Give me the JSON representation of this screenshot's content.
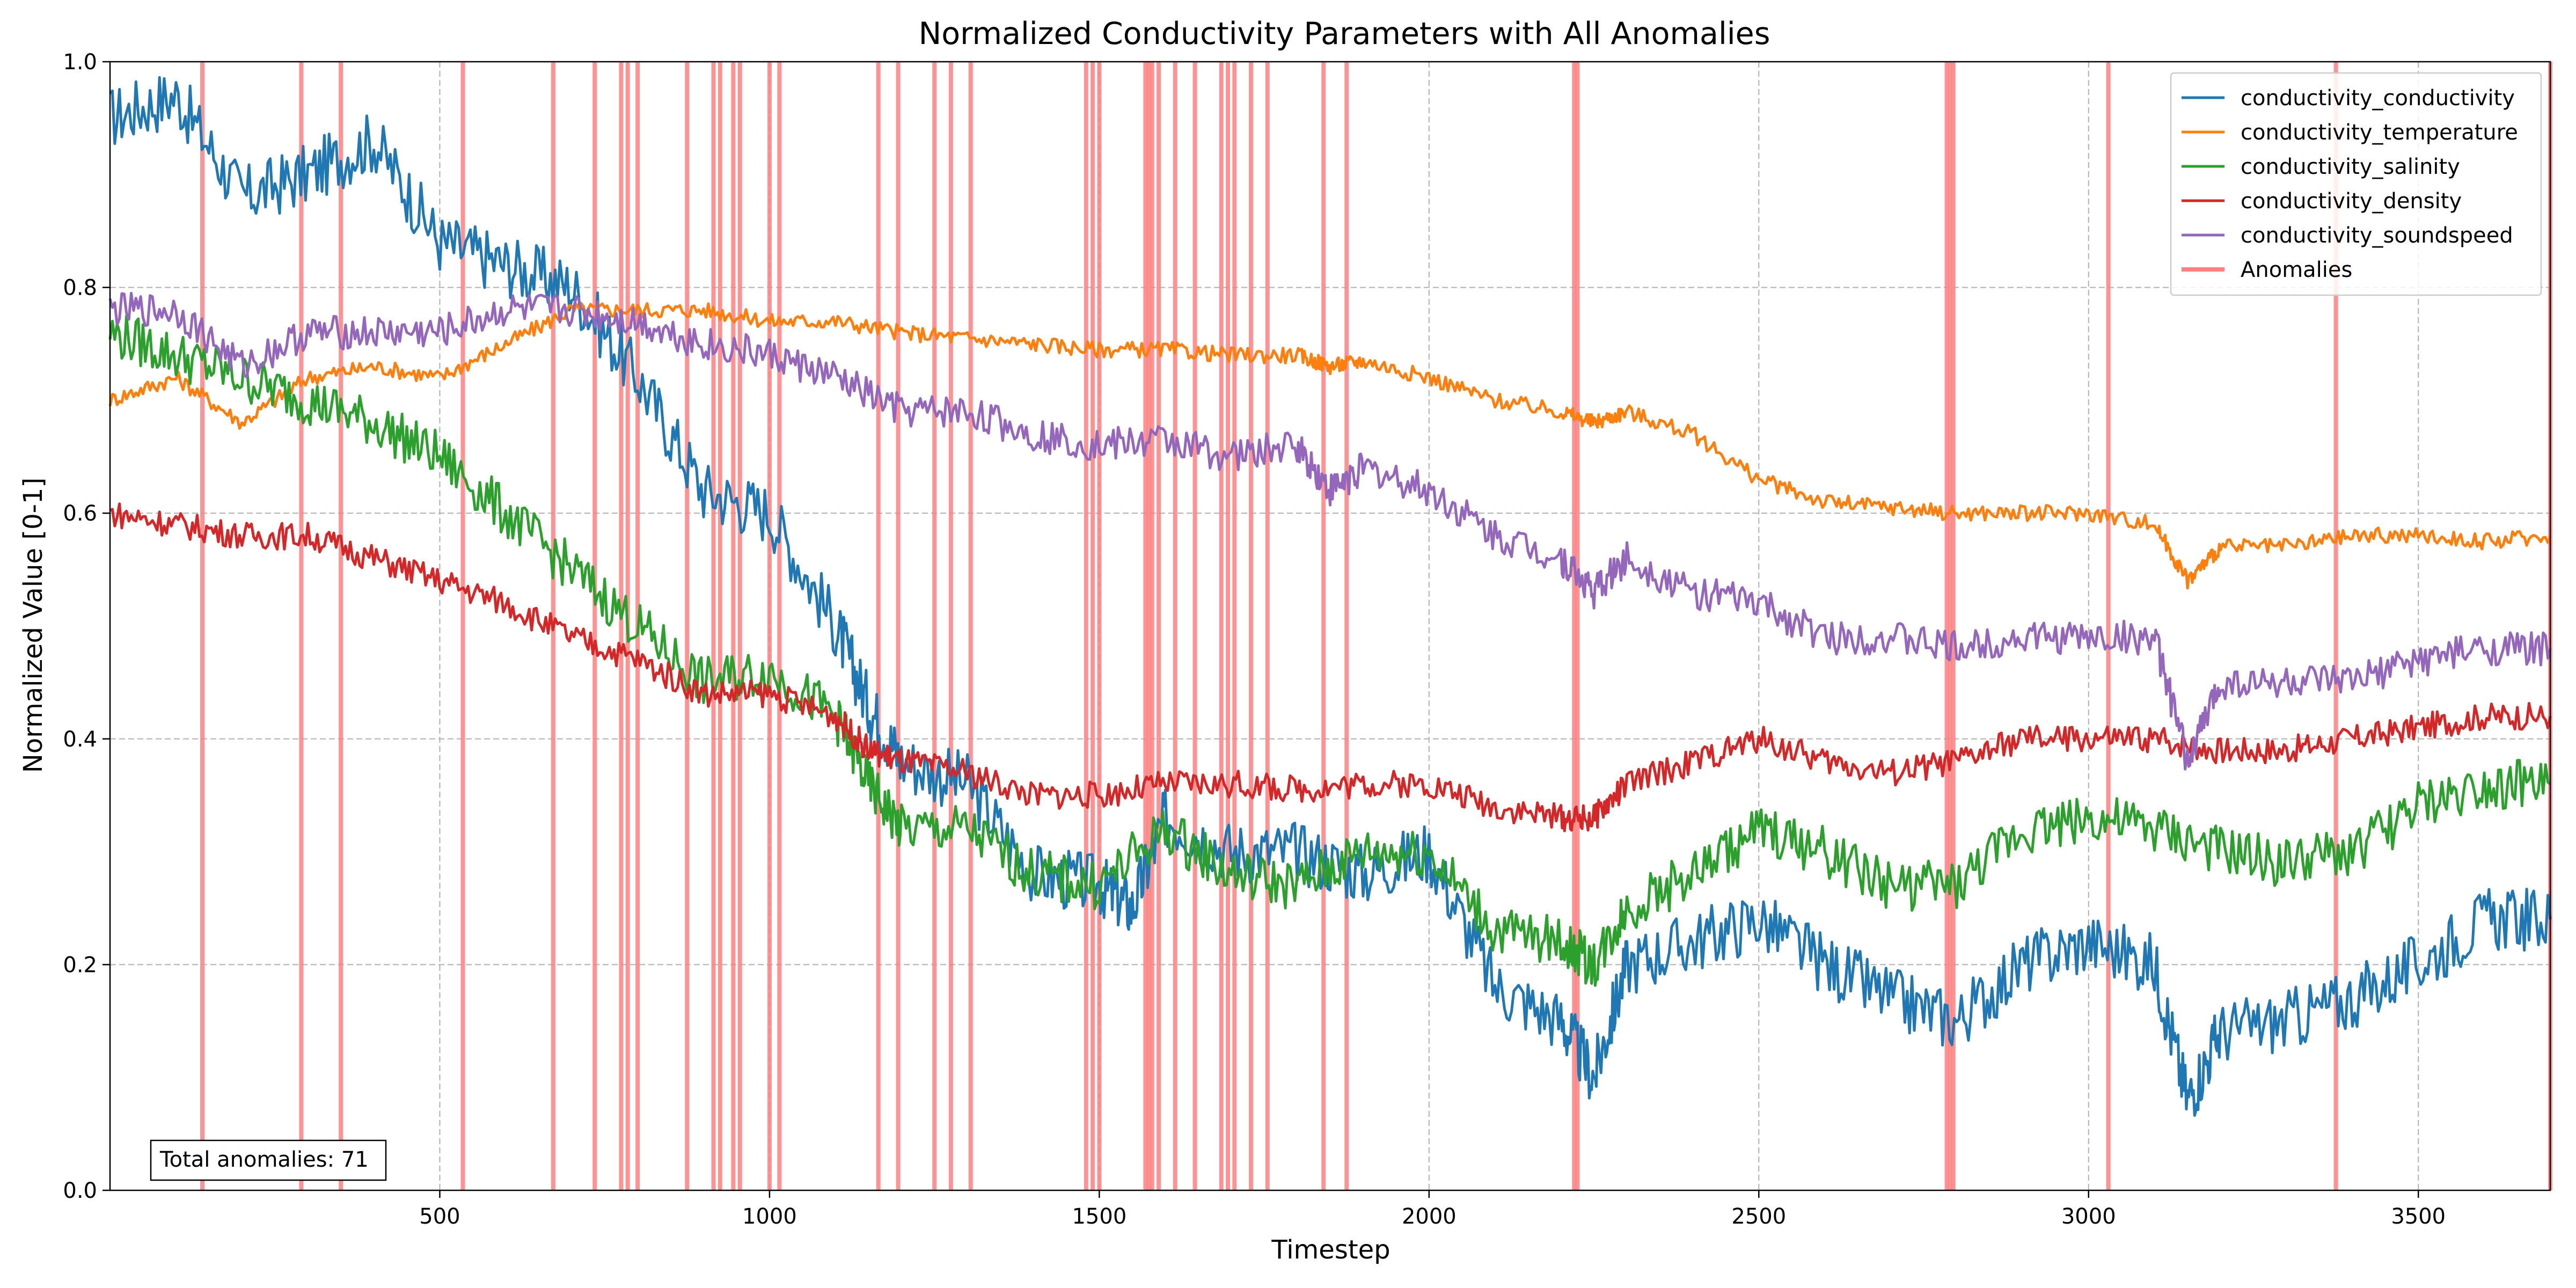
{
  "chart_data": {
    "type": "line",
    "title": "Normalized Conductivity Parameters with All Anomalies",
    "xlabel": "Timestep",
    "ylabel": "Normalized Value [0-1]",
    "xlim": [
      0,
      3700
    ],
    "ylim": [
      0,
      1
    ],
    "x_ticks": [
      500,
      1000,
      1500,
      2000,
      2500,
      3000,
      3500
    ],
    "y_ticks": [
      0.0,
      0.2,
      0.4,
      0.6,
      0.8,
      1.0
    ],
    "x_tick_labels": [
      "500",
      "1000",
      "1500",
      "2000",
      "2500",
      "3000",
      "3500"
    ],
    "y_tick_labels": [
      "0.0",
      "0.2",
      "0.4",
      "0.6",
      "0.8",
      "1.0"
    ],
    "grid": true,
    "legend_position": "top-right",
    "series": [
      {
        "name": "conductivity_conductivity",
        "color": "#1f77b4",
        "x": [
          0,
          100,
          200,
          300,
          400,
          500,
          600,
          700,
          800,
          900,
          1000,
          1100,
          1150,
          1200,
          1300,
          1400,
          1500,
          1550,
          1600,
          1700,
          1800,
          1900,
          2000,
          2100,
          2200,
          2250,
          2300,
          2400,
          2500,
          2600,
          2700,
          2800,
          2900,
          3000,
          3100,
          3150,
          3200,
          3300,
          3400,
          3500,
          3600,
          3700
        ],
        "y": [
          0.95,
          0.97,
          0.88,
          0.9,
          0.93,
          0.84,
          0.82,
          0.8,
          0.72,
          0.62,
          0.6,
          0.5,
          0.43,
          0.38,
          0.36,
          0.28,
          0.27,
          0.25,
          0.33,
          0.3,
          0.3,
          0.28,
          0.3,
          0.18,
          0.15,
          0.1,
          0.2,
          0.22,
          0.24,
          0.2,
          0.17,
          0.15,
          0.2,
          0.22,
          0.2,
          0.08,
          0.14,
          0.15,
          0.17,
          0.2,
          0.24,
          0.24
        ]
      },
      {
        "name": "conductivity_temperature",
        "color": "#ff7f0e",
        "x": [
          0,
          100,
          200,
          300,
          400,
          500,
          600,
          700,
          800,
          900,
          1000,
          1100,
          1200,
          1300,
          1400,
          1500,
          1600,
          1700,
          1800,
          1850,
          1900,
          2000,
          2100,
          2200,
          2250,
          2300,
          2400,
          2500,
          2600,
          2700,
          2800,
          2900,
          3000,
          3100,
          3150,
          3200,
          3300,
          3400,
          3500,
          3600,
          3700
        ],
        "y": [
          0.7,
          0.72,
          0.68,
          0.72,
          0.73,
          0.72,
          0.75,
          0.78,
          0.78,
          0.78,
          0.77,
          0.77,
          0.76,
          0.755,
          0.75,
          0.745,
          0.745,
          0.74,
          0.74,
          0.73,
          0.735,
          0.72,
          0.7,
          0.69,
          0.68,
          0.69,
          0.67,
          0.63,
          0.61,
          0.605,
          0.6,
          0.6,
          0.6,
          0.59,
          0.54,
          0.57,
          0.57,
          0.58,
          0.58,
          0.575,
          0.58
        ]
      },
      {
        "name": "conductivity_salinity",
        "color": "#2ca02c",
        "x": [
          0,
          100,
          200,
          300,
          400,
          500,
          600,
          700,
          800,
          900,
          1000,
          1100,
          1150,
          1200,
          1300,
          1400,
          1500,
          1600,
          1700,
          1800,
          1900,
          2000,
          2100,
          2200,
          2250,
          2300,
          2400,
          2500,
          2600,
          2700,
          2800,
          2900,
          3000,
          3100,
          3200,
          3300,
          3400,
          3500,
          3600,
          3700
        ],
        "y": [
          0.76,
          0.74,
          0.72,
          0.7,
          0.68,
          0.65,
          0.6,
          0.55,
          0.5,
          0.45,
          0.46,
          0.42,
          0.36,
          0.32,
          0.32,
          0.28,
          0.27,
          0.32,
          0.28,
          0.27,
          0.3,
          0.3,
          0.23,
          0.22,
          0.2,
          0.25,
          0.28,
          0.32,
          0.3,
          0.27,
          0.27,
          0.32,
          0.33,
          0.32,
          0.3,
          0.29,
          0.3,
          0.34,
          0.36,
          0.36
        ]
      },
      {
        "name": "conductivity_density",
        "color": "#d62728",
        "x": [
          0,
          100,
          200,
          300,
          400,
          500,
          600,
          700,
          800,
          900,
          1000,
          1100,
          1150,
          1200,
          1300,
          1400,
          1500,
          1600,
          1700,
          1800,
          1900,
          2000,
          2100,
          2200,
          2250,
          2300,
          2400,
          2500,
          2600,
          2700,
          2800,
          2900,
          3000,
          3100,
          3200,
          3300,
          3400,
          3500,
          3600,
          3700
        ],
        "y": [
          0.6,
          0.59,
          0.58,
          0.58,
          0.56,
          0.54,
          0.52,
          0.49,
          0.47,
          0.44,
          0.44,
          0.42,
          0.39,
          0.38,
          0.37,
          0.35,
          0.35,
          0.36,
          0.36,
          0.355,
          0.36,
          0.36,
          0.34,
          0.33,
          0.33,
          0.36,
          0.38,
          0.4,
          0.38,
          0.37,
          0.38,
          0.4,
          0.4,
          0.4,
          0.39,
          0.39,
          0.4,
          0.41,
          0.42,
          0.42
        ]
      },
      {
        "name": "conductivity_soundspeed",
        "color": "#9467bd",
        "x": [
          0,
          100,
          200,
          300,
          400,
          500,
          600,
          700,
          800,
          900,
          1000,
          1100,
          1200,
          1300,
          1400,
          1500,
          1600,
          1700,
          1800,
          1850,
          1900,
          2000,
          2100,
          2200,
          2250,
          2300,
          2400,
          2500,
          2600,
          2700,
          2800,
          2900,
          3000,
          3100,
          3150,
          3200,
          3300,
          3400,
          3500,
          3600,
          3700
        ],
        "y": [
          0.78,
          0.78,
          0.73,
          0.76,
          0.76,
          0.76,
          0.78,
          0.78,
          0.77,
          0.75,
          0.74,
          0.72,
          0.69,
          0.69,
          0.67,
          0.66,
          0.665,
          0.65,
          0.66,
          0.62,
          0.64,
          0.62,
          0.58,
          0.56,
          0.53,
          0.56,
          0.53,
          0.52,
          0.49,
          0.49,
          0.48,
          0.49,
          0.49,
          0.49,
          0.38,
          0.45,
          0.45,
          0.45,
          0.47,
          0.48,
          0.48
        ]
      }
    ],
    "anomalies": {
      "name": "Anomalies",
      "color": "#ff8080",
      "total_text": "Total anomalies: 71",
      "x": [
        140,
        290,
        350,
        535,
        672,
        735,
        775,
        785,
        800,
        875,
        915,
        925,
        945,
        955,
        1000,
        1015,
        1165,
        1195,
        1250,
        1275,
        1305,
        1480,
        1490,
        1500,
        1570,
        1575,
        1580,
        1590,
        1615,
        1645,
        1685,
        1695,
        1705,
        1730,
        1755,
        1840,
        1875,
        2220,
        2225,
        2785,
        2790,
        2795,
        3030,
        3375,
        3700
      ]
    }
  }
}
